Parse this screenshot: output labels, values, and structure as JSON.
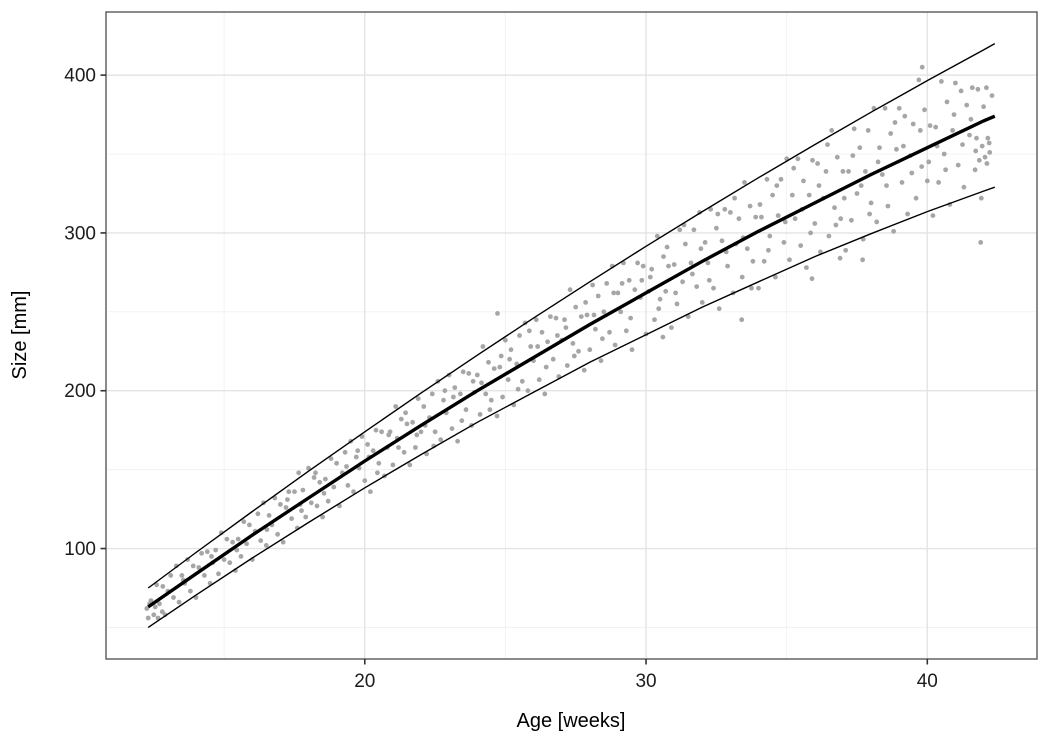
{
  "chart_data": {
    "type": "scatter",
    "xlabel": "Age [weeks]",
    "ylabel": "Size [mm]",
    "grid": true,
    "legend": "none",
    "x_axis": {
      "domain": [
        10.8,
        43.9
      ],
      "major_ticks": [
        20,
        30,
        40
      ],
      "minor_gridlines": [
        15,
        25,
        35
      ]
    },
    "y_axis": {
      "domain": [
        30,
        440
      ],
      "major_ticks": [
        100,
        200,
        300,
        400
      ],
      "minor_gridlines": [
        50,
        150,
        250,
        350
      ]
    },
    "trend": {
      "ages": [
        12.3,
        14,
        16,
        18,
        20,
        22,
        24,
        26,
        28,
        30,
        32,
        34,
        36,
        38,
        40,
        42,
        42.4
      ],
      "center": [
        63,
        84,
        108.5,
        132,
        155.5,
        178,
        200,
        221,
        242,
        262,
        282,
        301,
        319,
        337,
        354,
        371,
        374
      ],
      "upper": [
        75,
        97.5,
        123.5,
        149,
        174,
        198.5,
        222.5,
        246,
        269,
        291.5,
        313.5,
        335,
        356,
        376.5,
        396.5,
        416,
        420
      ],
      "lower": [
        50,
        70.5,
        94,
        116.5,
        138.5,
        159.5,
        180,
        199,
        218,
        235.5,
        253,
        269,
        285,
        299.5,
        313.5,
        326.5,
        329
      ]
    },
    "points": [
      [
        12.25,
        62
      ],
      [
        12.3,
        56
      ],
      [
        12.35,
        65
      ],
      [
        12.4,
        67
      ],
      [
        12.5,
        58
      ],
      [
        12.55,
        63
      ],
      [
        12.6,
        77
      ],
      [
        12.65,
        56
      ],
      [
        12.7,
        65
      ],
      [
        12.8,
        60
      ],
      [
        12.82,
        76
      ],
      [
        12.9,
        58
      ],
      [
        13.0,
        73
      ],
      [
        13.1,
        83
      ],
      [
        13.2,
        69
      ],
      [
        13.3,
        89
      ],
      [
        13.4,
        66
      ],
      [
        13.5,
        83
      ],
      [
        13.55,
        80
      ],
      [
        13.6,
        78
      ],
      [
        13.7,
        93
      ],
      [
        13.8,
        73
      ],
      [
        13.9,
        89
      ],
      [
        14.0,
        69
      ],
      [
        14.1,
        88
      ],
      [
        14.2,
        97
      ],
      [
        14.3,
        83
      ],
      [
        14.4,
        98
      ],
      [
        14.5,
        78
      ],
      [
        14.55,
        95
      ],
      [
        14.6,
        91
      ],
      [
        14.7,
        99
      ],
      [
        14.8,
        84
      ],
      [
        14.9,
        110
      ],
      [
        15.0,
        93
      ],
      [
        15.1,
        106
      ],
      [
        15.2,
        91
      ],
      [
        15.3,
        104
      ],
      [
        15.4,
        86
      ],
      [
        15.45,
        99
      ],
      [
        15.5,
        106
      ],
      [
        15.6,
        95
      ],
      [
        15.7,
        117
      ],
      [
        15.8,
        103
      ],
      [
        15.9,
        115
      ],
      [
        16.0,
        93
      ],
      [
        16.1,
        111
      ],
      [
        16.2,
        122
      ],
      [
        16.3,
        105
      ],
      [
        16.4,
        129
      ],
      [
        16.5,
        102
      ],
      [
        16.52,
        112
      ],
      [
        16.6,
        121
      ],
      [
        16.7,
        115
      ],
      [
        16.8,
        132
      ],
      [
        16.9,
        109
      ],
      [
        17.0,
        128
      ],
      [
        17.1,
        104
      ],
      [
        17.2,
        126
      ],
      [
        17.25,
        131
      ],
      [
        17.3,
        136
      ],
      [
        17.4,
        119
      ],
      [
        17.5,
        136
      ],
      [
        17.6,
        113
      ],
      [
        17.65,
        148
      ],
      [
        17.7,
        128
      ],
      [
        17.75,
        124
      ],
      [
        17.8,
        137
      ],
      [
        17.9,
        120
      ],
      [
        18.0,
        151
      ],
      [
        18.1,
        129
      ],
      [
        18.2,
        145
      ],
      [
        18.25,
        148
      ],
      [
        18.3,
        127
      ],
      [
        18.4,
        142
      ],
      [
        18.5,
        120
      ],
      [
        18.55,
        135
      ],
      [
        18.6,
        144
      ],
      [
        18.7,
        130
      ],
      [
        18.8,
        157
      ],
      [
        18.9,
        139
      ],
      [
        19.0,
        154
      ],
      [
        19.1,
        127
      ],
      [
        19.2,
        148
      ],
      [
        19.3,
        161
      ],
      [
        19.35,
        152
      ],
      [
        19.4,
        140
      ],
      [
        19.5,
        168
      ],
      [
        19.6,
        136
      ],
      [
        19.7,
        158
      ],
      [
        19.75,
        162
      ],
      [
        19.8,
        151
      ],
      [
        19.9,
        171
      ],
      [
        20.0,
        143
      ],
      [
        20.1,
        166
      ],
      [
        20.15,
        158
      ],
      [
        20.2,
        136
      ],
      [
        20.3,
        162
      ],
      [
        20.4,
        175
      ],
      [
        20.45,
        148
      ],
      [
        20.5,
        154
      ],
      [
        20.6,
        174
      ],
      [
        20.7,
        146
      ],
      [
        20.8,
        164
      ],
      [
        20.85,
        172
      ],
      [
        20.9,
        174
      ],
      [
        21.0,
        153
      ],
      [
        21.1,
        190
      ],
      [
        21.15,
        170
      ],
      [
        21.2,
        164
      ],
      [
        21.3,
        182
      ],
      [
        21.4,
        161
      ],
      [
        21.45,
        186
      ],
      [
        21.5,
        179
      ],
      [
        21.6,
        153
      ],
      [
        21.7,
        180
      ],
      [
        21.8,
        164
      ],
      [
        21.85,
        172
      ],
      [
        21.9,
        195
      ],
      [
        22.0,
        174
      ],
      [
        22.1,
        190
      ],
      [
        22.15,
        178
      ],
      [
        22.2,
        160
      ],
      [
        22.3,
        183
      ],
      [
        22.4,
        198
      ],
      [
        22.45,
        165
      ],
      [
        22.5,
        174
      ],
      [
        22.6,
        206
      ],
      [
        22.7,
        169
      ],
      [
        22.8,
        194
      ],
      [
        22.85,
        200
      ],
      [
        22.9,
        186
      ],
      [
        23.0,
        210
      ],
      [
        23.1,
        176
      ],
      [
        23.15,
        196
      ],
      [
        23.2,
        202
      ],
      [
        23.3,
        168
      ],
      [
        23.4,
        198
      ],
      [
        23.45,
        181
      ],
      [
        23.5,
        212
      ],
      [
        23.6,
        188
      ],
      [
        23.7,
        211
      ],
      [
        23.8,
        178
      ],
      [
        23.85,
        206
      ],
      [
        23.9,
        199
      ],
      [
        24.0,
        210
      ],
      [
        24.1,
        185
      ],
      [
        24.15,
        205
      ],
      [
        24.2,
        228
      ],
      [
        24.3,
        198
      ],
      [
        24.4,
        218
      ],
      [
        24.45,
        188
      ],
      [
        24.5,
        194
      ],
      [
        24.6,
        214
      ],
      [
        24.7,
        184
      ],
      [
        24.72,
        249
      ],
      [
        24.8,
        215
      ],
      [
        24.85,
        222
      ],
      [
        24.9,
        196
      ],
      [
        25.0,
        232
      ],
      [
        25.1,
        207
      ],
      [
        25.15,
        220
      ],
      [
        25.2,
        226
      ],
      [
        25.3,
        191
      ],
      [
        25.4,
        217
      ],
      [
        25.45,
        201
      ],
      [
        25.5,
        235
      ],
      [
        25.6,
        206
      ],
      [
        25.7,
        243
      ],
      [
        25.8,
        200
      ],
      [
        25.85,
        238
      ],
      [
        25.9,
        228
      ],
      [
        26.0,
        219
      ],
      [
        26.1,
        245
      ],
      [
        26.15,
        228
      ],
      [
        26.2,
        207
      ],
      [
        26.3,
        237
      ],
      [
        26.4,
        198
      ],
      [
        26.45,
        215
      ],
      [
        26.5,
        231
      ],
      [
        26.6,
        247
      ],
      [
        26.7,
        220
      ],
      [
        26.8,
        246
      ],
      [
        26.85,
        235
      ],
      [
        26.9,
        209
      ],
      [
        27.0,
        232
      ],
      [
        27.1,
        245
      ],
      [
        27.15,
        240
      ],
      [
        27.2,
        216
      ],
      [
        27.3,
        264
      ],
      [
        27.4,
        230
      ],
      [
        27.45,
        222
      ],
      [
        27.5,
        253
      ],
      [
        27.6,
        225
      ],
      [
        27.7,
        247
      ],
      [
        27.8,
        213
      ],
      [
        27.85,
        256
      ],
      [
        27.9,
        248
      ],
      [
        28.0,
        226
      ],
      [
        28.1,
        267
      ],
      [
        28.15,
        248
      ],
      [
        28.2,
        239
      ],
      [
        28.3,
        260
      ],
      [
        28.4,
        219
      ],
      [
        28.45,
        233
      ],
      [
        28.5,
        250
      ],
      [
        28.6,
        268
      ],
      [
        28.7,
        237
      ],
      [
        28.8,
        279
      ],
      [
        28.85,
        262
      ],
      [
        28.9,
        229
      ],
      [
        29.0,
        262
      ],
      [
        29.1,
        250
      ],
      [
        29.15,
        268
      ],
      [
        29.2,
        281
      ],
      [
        29.3,
        238
      ],
      [
        29.4,
        270
      ],
      [
        29.45,
        246
      ],
      [
        29.5,
        226
      ],
      [
        29.6,
        264
      ],
      [
        29.7,
        281
      ],
      [
        29.8,
        259
      ],
      [
        29.85,
        270
      ],
      [
        29.9,
        279
      ],
      [
        30.0,
        236
      ],
      [
        30.1,
        263
      ],
      [
        30.15,
        272
      ],
      [
        30.2,
        277
      ],
      [
        30.3,
        245
      ],
      [
        30.4,
        298
      ],
      [
        30.45,
        252
      ],
      [
        30.5,
        258
      ],
      [
        30.6,
        234
      ],
      [
        30.62,
        285
      ],
      [
        30.7,
        263
      ],
      [
        30.75,
        291
      ],
      [
        30.8,
        279
      ],
      [
        30.9,
        240
      ],
      [
        31.0,
        280
      ],
      [
        31.05,
        262
      ],
      [
        31.1,
        255
      ],
      [
        31.2,
        302
      ],
      [
        31.3,
        269
      ],
      [
        31.35,
        305
      ],
      [
        31.4,
        293
      ],
      [
        31.5,
        247
      ],
      [
        31.6,
        281
      ],
      [
        31.65,
        274
      ],
      [
        31.7,
        302
      ],
      [
        31.8,
        266
      ],
      [
        31.9,
        313
      ],
      [
        31.95,
        290
      ],
      [
        32.0,
        256
      ],
      [
        32.1,
        294
      ],
      [
        32.2,
        281
      ],
      [
        32.25,
        270
      ],
      [
        32.3,
        315
      ],
      [
        32.4,
        265
      ],
      [
        32.5,
        303
      ],
      [
        32.55,
        312
      ],
      [
        32.6,
        252
      ],
      [
        32.7,
        295
      ],
      [
        32.8,
        315
      ],
      [
        32.85,
        288
      ],
      [
        32.9,
        279
      ],
      [
        33.0,
        313
      ],
      [
        33.1,
        262
      ],
      [
        33.15,
        322
      ],
      [
        33.2,
        293
      ],
      [
        33.3,
        309
      ],
      [
        33.4,
        245
      ],
      [
        33.42,
        272
      ],
      [
        33.45,
        297
      ],
      [
        33.5,
        332
      ],
      [
        33.6,
        290
      ],
      [
        33.7,
        317
      ],
      [
        33.75,
        265
      ],
      [
        33.8,
        282
      ],
      [
        33.9,
        310
      ],
      [
        34.0,
        265
      ],
      [
        34.05,
        318
      ],
      [
        34.1,
        310
      ],
      [
        34.2,
        282
      ],
      [
        34.3,
        334
      ],
      [
        34.35,
        289
      ],
      [
        34.4,
        298
      ],
      [
        34.5,
        324
      ],
      [
        34.6,
        272
      ],
      [
        34.65,
        330
      ],
      [
        34.7,
        311
      ],
      [
        34.8,
        334
      ],
      [
        34.9,
        294
      ],
      [
        34.95,
        307
      ],
      [
        35.0,
        347
      ],
      [
        35.1,
        283
      ],
      [
        35.2,
        324
      ],
      [
        35.25,
        341
      ],
      [
        35.3,
        309
      ],
      [
        35.4,
        347
      ],
      [
        35.5,
        292
      ],
      [
        35.55,
        315
      ],
      [
        35.6,
        333
      ],
      [
        35.7,
        278
      ],
      [
        35.8,
        324
      ],
      [
        35.85,
        300
      ],
      [
        35.9,
        271
      ],
      [
        35.92,
        346
      ],
      [
        36.0,
        306
      ],
      [
        36.1,
        344
      ],
      [
        36.15,
        330
      ],
      [
        36.2,
        288
      ],
      [
        36.3,
        322
      ],
      [
        36.4,
        339
      ],
      [
        36.45,
        356
      ],
      [
        36.5,
        298
      ],
      [
        36.6,
        365
      ],
      [
        36.7,
        316
      ],
      [
        36.75,
        305
      ],
      [
        36.8,
        348
      ],
      [
        36.9,
        284
      ],
      [
        36.92,
        309
      ],
      [
        37.0,
        339
      ],
      [
        37.05,
        322
      ],
      [
        37.1,
        289
      ],
      [
        37.2,
        339
      ],
      [
        37.3,
        308
      ],
      [
        37.35,
        349
      ],
      [
        37.4,
        366
      ],
      [
        37.5,
        325
      ],
      [
        37.6,
        354
      ],
      [
        37.65,
        330
      ],
      [
        37.7,
        283
      ],
      [
        37.72,
        296
      ],
      [
        37.8,
        339
      ],
      [
        37.9,
        365
      ],
      [
        37.95,
        312
      ],
      [
        38.0,
        319
      ],
      [
        38.1,
        379
      ],
      [
        38.2,
        307
      ],
      [
        38.25,
        345
      ],
      [
        38.3,
        354
      ],
      [
        38.4,
        337
      ],
      [
        38.5,
        379
      ],
      [
        38.55,
        330
      ],
      [
        38.6,
        317
      ],
      [
        38.7,
        363
      ],
      [
        38.8,
        301
      ],
      [
        38.85,
        370
      ],
      [
        38.9,
        353
      ],
      [
        39.0,
        379
      ],
      [
        39.1,
        332
      ],
      [
        39.15,
        355
      ],
      [
        39.2,
        374
      ],
      [
        39.3,
        312
      ],
      [
        39.4,
        349
      ],
      [
        39.45,
        338
      ],
      [
        39.5,
        369
      ],
      [
        39.6,
        322
      ],
      [
        39.7,
        397
      ],
      [
        39.75,
        365
      ],
      [
        39.8,
        342
      ],
      [
        39.82,
        405
      ],
      [
        39.9,
        378
      ],
      [
        40.0,
        333
      ],
      [
        40.05,
        345
      ],
      [
        40.1,
        368
      ],
      [
        40.2,
        311
      ],
      [
        40.3,
        367
      ],
      [
        40.35,
        355
      ],
      [
        40.4,
        332
      ],
      [
        40.5,
        396
      ],
      [
        40.6,
        350
      ],
      [
        40.65,
        340
      ],
      [
        40.7,
        383
      ],
      [
        40.8,
        318
      ],
      [
        40.9,
        365
      ],
      [
        40.95,
        375
      ],
      [
        41.0,
        395
      ],
      [
        41.1,
        343
      ],
      [
        41.2,
        390
      ],
      [
        41.25,
        356
      ],
      [
        41.3,
        329
      ],
      [
        41.4,
        381
      ],
      [
        41.5,
        362
      ],
      [
        41.55,
        372
      ],
      [
        41.6,
        392
      ],
      [
        41.7,
        340
      ],
      [
        41.72,
        352
      ],
      [
        41.75,
        360
      ],
      [
        41.8,
        391
      ],
      [
        41.85,
        346
      ],
      [
        41.9,
        294
      ],
      [
        41.92,
        322
      ],
      [
        41.95,
        355
      ],
      [
        42.0,
        380
      ],
      [
        42.05,
        348
      ],
      [
        42.1,
        392
      ],
      [
        42.12,
        344
      ],
      [
        42.15,
        360
      ],
      [
        42.2,
        357
      ],
      [
        42.22,
        351
      ],
      [
        42.3,
        387
      ]
    ]
  },
  "style": {
    "background": "#ffffff",
    "panel_background": "#ffffff",
    "panel_border": "#595959",
    "grid_major": "#e4e4e4",
    "grid_minor": "#f1f1f1",
    "point_color": "#a6a6a6",
    "point_radius": 2.4,
    "center_line_color": "#000000",
    "center_line_width": 3.4,
    "band_line_color": "#000000",
    "band_line_width": 1.4,
    "tick_color": "#333333",
    "tick_label_color": "#1c1c1c"
  }
}
